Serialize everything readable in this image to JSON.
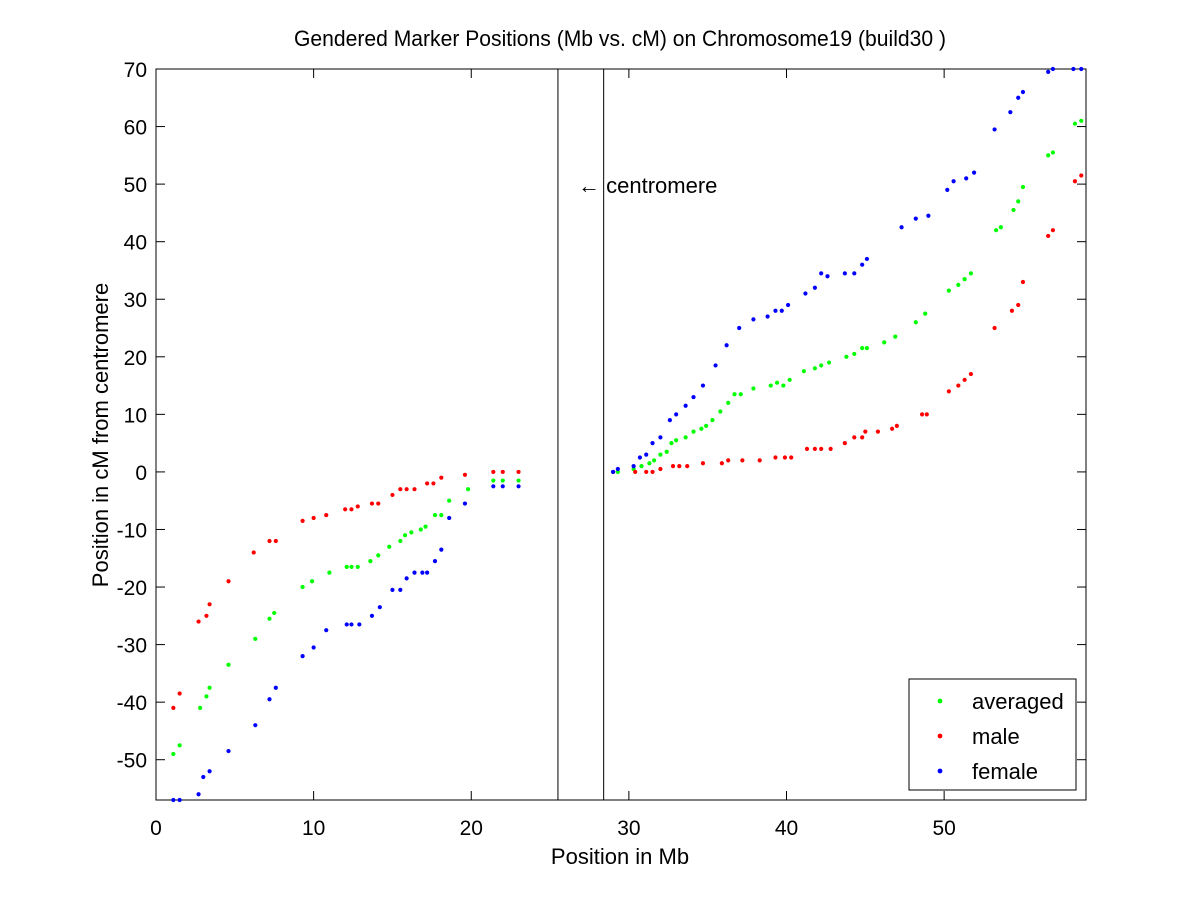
{
  "chart_data": {
    "type": "scatter",
    "title": "Gendered Marker Positions (Mb vs. cM) on Chromosome19 (build30 )",
    "xlabel": "Position in Mb",
    "ylabel": "Position in cM from centromere",
    "xlim": [
      0,
      59
    ],
    "ylim": [
      -57,
      70
    ],
    "xticks": [
      0,
      10,
      20,
      30,
      40,
      50
    ],
    "yticks": [
      -50,
      -40,
      -30,
      -20,
      -10,
      0,
      10,
      20,
      30,
      40,
      50,
      60,
      70
    ],
    "grid": false,
    "centromere_lines": [
      25.5,
      28.4
    ],
    "annotation": {
      "text": "← centromere",
      "x": 26.8,
      "y": 50
    },
    "legend": {
      "placement": "bottom-right"
    },
    "series": [
      {
        "name": "averaged",
        "color": "#00ff00",
        "x": [
          1.1,
          1.5,
          2.8,
          3.2,
          3.4,
          4.6,
          6.3,
          7.2,
          7.5,
          9.3,
          9.9,
          11.0,
          12.1,
          12.4,
          12.8,
          13.6,
          14.1,
          14.8,
          15.5,
          15.8,
          16.2,
          16.8,
          17.1,
          17.7,
          18.1,
          18.6,
          19.8,
          21.4,
          22.0,
          23.0,
          29.0,
          29.3,
          30.3,
          30.8,
          31.3,
          31.6,
          32.0,
          32.4,
          32.7,
          33.0,
          33.6,
          34.1,
          34.6,
          34.9,
          35.3,
          35.8,
          36.3,
          36.7,
          37.1,
          37.9,
          39.0,
          39.4,
          39.8,
          40.2,
          41.1,
          41.8,
          42.2,
          42.7,
          43.8,
          44.3,
          44.8,
          45.1,
          46.2,
          46.9,
          48.2,
          48.8,
          50.3,
          50.9,
          51.3,
          51.7,
          53.3,
          53.6,
          54.4,
          54.7,
          55.0,
          56.6,
          56.9,
          58.3,
          58.7
        ],
        "y": [
          -49,
          -47.5,
          -41,
          -39,
          -37.5,
          -33.5,
          -29,
          -25.5,
          -24.5,
          -20,
          -19,
          -17.5,
          -16.5,
          -16.5,
          -16.5,
          -15.5,
          -14.5,
          -13,
          -12,
          -11,
          -10.5,
          -10,
          -9.5,
          -7.5,
          -7.5,
          -5,
          -3,
          -1.5,
          -1.5,
          -1.5,
          0,
          0,
          0.5,
          1,
          1.5,
          2,
          3,
          3.5,
          5,
          5.5,
          6,
          7,
          7.5,
          8,
          9,
          10.5,
          12,
          13.5,
          13.5,
          14.5,
          15,
          15.5,
          15,
          16,
          17.5,
          18,
          18.5,
          19,
          20,
          20.5,
          21.5,
          21.5,
          22.5,
          23.5,
          26,
          27.5,
          31.5,
          32.5,
          33.5,
          34.5,
          42,
          42.5,
          45.5,
          47,
          49.5,
          55,
          55.5,
          60.5,
          61
        ]
      },
      {
        "name": "male",
        "color": "#ff0000",
        "x": [
          1.1,
          1.5,
          2.7,
          3.2,
          3.4,
          4.6,
          6.2,
          7.2,
          7.6,
          9.3,
          10.0,
          10.8,
          12.0,
          12.4,
          12.8,
          13.7,
          14.1,
          15.0,
          15.5,
          15.9,
          16.4,
          17.2,
          17.6,
          18.1,
          19.6,
          21.4,
          22.0,
          23.0,
          29.0,
          30.4,
          31.1,
          31.5,
          32.0,
          32.8,
          33.2,
          33.7,
          34.7,
          35.9,
          36.3,
          37.2,
          38.3,
          39.3,
          39.9,
          40.3,
          41.3,
          41.8,
          42.2,
          42.8,
          43.7,
          44.3,
          44.8,
          45.0,
          45.8,
          46.7,
          47.0,
          48.6,
          48.9,
          50.3,
          50.9,
          51.3,
          51.7,
          53.2,
          54.3,
          54.7,
          55.0,
          56.6,
          56.9,
          58.3,
          58.7
        ],
        "y": [
          -41,
          -38.5,
          -26,
          -25,
          -23,
          -19,
          -14,
          -12,
          -12,
          -8.5,
          -8,
          -7.5,
          -6.5,
          -6.5,
          -6,
          -5.5,
          -5.5,
          -4,
          -3,
          -3,
          -3,
          -2,
          -2,
          -1,
          -0.5,
          0,
          0,
          0,
          0,
          0,
          0,
          0,
          0.5,
          1,
          1,
          1,
          1.5,
          1.5,
          2,
          2,
          2,
          2.5,
          2.5,
          2.5,
          4,
          4,
          4,
          4,
          5,
          6,
          6,
          7,
          7,
          7.5,
          8,
          10,
          10,
          14,
          15,
          16,
          17,
          25,
          28,
          29,
          33,
          41,
          42,
          50.5,
          51.5
        ]
      },
      {
        "name": "female",
        "color": "#0000ff",
        "x": [
          1.1,
          1.5,
          2.7,
          3.0,
          3.4,
          4.6,
          6.3,
          7.2,
          7.6,
          9.3,
          10.0,
          10.8,
          12.1,
          12.4,
          12.9,
          13.7,
          14.2,
          15.0,
          15.5,
          15.9,
          16.4,
          16.9,
          17.2,
          17.7,
          18.1,
          18.6,
          19.6,
          21.4,
          22.0,
          23.0,
          29.0,
          29.3,
          30.3,
          30.7,
          31.1,
          31.5,
          32.0,
          32.6,
          33.0,
          33.6,
          34.1,
          34.7,
          35.5,
          36.2,
          37.0,
          37.9,
          38.8,
          39.3,
          39.7,
          40.1,
          41.2,
          41.8,
          42.2,
          42.6,
          43.7,
          44.3,
          44.8,
          45.1,
          47.3,
          48.2,
          49.0,
          50.2,
          50.6,
          51.4,
          51.9,
          53.2,
          54.2,
          54.7,
          55.0,
          56.6,
          56.9,
          58.2,
          58.7
        ],
        "y": [
          -57,
          -57,
          -56,
          -53,
          -52,
          -48.5,
          -44,
          -39.5,
          -37.5,
          -32,
          -30.5,
          -27.5,
          -26.5,
          -26.5,
          -26.5,
          -25,
          -23.5,
          -20.5,
          -20.5,
          -18.5,
          -17.5,
          -17.5,
          -17.5,
          -15.5,
          -13.5,
          -8,
          -5.5,
          -2.5,
          -2.5,
          -2.5,
          0,
          0.5,
          1,
          2.5,
          3,
          5,
          6,
          9,
          10,
          11.5,
          13,
          15,
          18.5,
          22,
          25,
          26.5,
          27,
          28,
          28,
          29,
          31,
          32,
          34.5,
          34,
          34.5,
          34.5,
          36,
          37,
          42.5,
          44,
          44.5,
          49,
          50.5,
          51,
          52,
          59.5,
          62.5,
          65,
          66,
          69.5,
          70,
          70,
          70
        ]
      }
    ]
  }
}
